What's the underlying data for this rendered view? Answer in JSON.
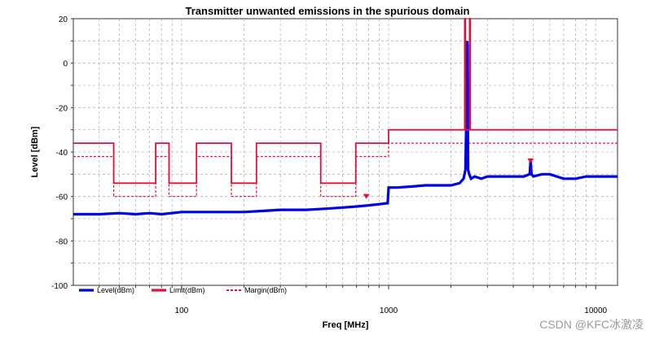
{
  "chart_data": {
    "type": "line",
    "title": "Transmitter unwanted emissions in the spurious domain",
    "xlabel": "Freq [MHz]",
    "ylabel": "Level [dBm]",
    "x_scale": "log",
    "xlim": [
      30,
      12750
    ],
    "ylim": [
      -100,
      20
    ],
    "x_ticks": [
      {
        "value": 100,
        "label": "100"
      },
      {
        "value": 1000,
        "label": "1000"
      },
      {
        "value": 10000,
        "label": "10000"
      }
    ],
    "y_ticks": [
      {
        "value": 20,
        "label": "20"
      },
      {
        "value": 0,
        "label": "0"
      },
      {
        "value": -20,
        "label": "-20"
      },
      {
        "value": -40,
        "label": "-40"
      },
      {
        "value": -60,
        "label": "-60"
      },
      {
        "value": -80,
        "label": "-80"
      },
      {
        "value": -100,
        "label": "-100"
      }
    ],
    "grid": true,
    "legend_position": "bottom-left",
    "series": [
      {
        "name": "Level(dBm)",
        "color": "#0000e6",
        "style": "solid",
        "x": [
          30,
          40,
          50,
          60,
          70,
          80,
          100,
          130,
          160,
          200,
          250,
          300,
          400,
          500,
          600,
          700,
          800,
          900,
          990,
          1000,
          1100,
          1300,
          1500,
          1800,
          2000,
          2200,
          2300,
          2350,
          2380,
          2395,
          2400,
          2405,
          2420,
          2450,
          2500,
          2600,
          2800,
          3000,
          3500,
          4000,
          4500,
          4800,
          4850,
          4900,
          5000,
          5500,
          6000,
          7000,
          8000,
          9000,
          10000,
          11000,
          12000,
          12750
        ],
        "y": [
          -68,
          -68,
          -67.5,
          -68,
          -67.5,
          -68,
          -67,
          -67,
          -67,
          -67,
          -66.5,
          -66,
          -66,
          -65.5,
          -65,
          -64.5,
          -64,
          -63.5,
          -63,
          -56,
          -56,
          -55.5,
          -55,
          -55,
          -55,
          -54,
          -52,
          -48,
          -20,
          10,
          8,
          -10,
          -48,
          -50,
          -52,
          -51,
          -52,
          -51,
          -51,
          -51,
          -51,
          -50,
          -44,
          -50,
          -51,
          -50,
          -50,
          -52,
          -52,
          -51,
          -51,
          -51,
          -51,
          -51
        ]
      },
      {
        "name": "Limit(dBm)",
        "color": "#e0103a",
        "style": "solid",
        "x": [
          30,
          47,
          47,
          75,
          75,
          87,
          87,
          118,
          118,
          174,
          174,
          230,
          230,
          470,
          470,
          694,
          694,
          1000,
          1000,
          2330,
          2330,
          2350,
          2350,
          2460,
          2460,
          2480,
          2480,
          12750
        ],
        "y": [
          -36,
          -36,
          -54,
          -54,
          -36,
          -36,
          -54,
          -54,
          -36,
          -36,
          -54,
          -54,
          -36,
          -36,
          -54,
          -54,
          -36,
          -36,
          -30,
          -30,
          20,
          20,
          -30,
          -30,
          20,
          20,
          -30,
          -30
        ]
      },
      {
        "name": "Margin(dBm)",
        "color": "#e0103a",
        "style": "dotted",
        "x": [
          30,
          47,
          47,
          75,
          75,
          87,
          87,
          118,
          118,
          174,
          174,
          230,
          230,
          470,
          470,
          694,
          694,
          1000,
          1000,
          2330,
          2480,
          12750
        ],
        "y": [
          -42,
          -42,
          -60,
          -60,
          -42,
          -42,
          -60,
          -60,
          -42,
          -42,
          -60,
          -60,
          -42,
          -42,
          -60,
          -60,
          -42,
          -42,
          -36,
          -36,
          -36,
          -36
        ]
      }
    ],
    "markers": [
      {
        "x": 780,
        "y": -60,
        "color": "#e0103a"
      },
      {
        "x": 4850,
        "y": -44,
        "color": "#e0103a"
      }
    ]
  },
  "watermark": "CSDN @KFC冰激凌"
}
